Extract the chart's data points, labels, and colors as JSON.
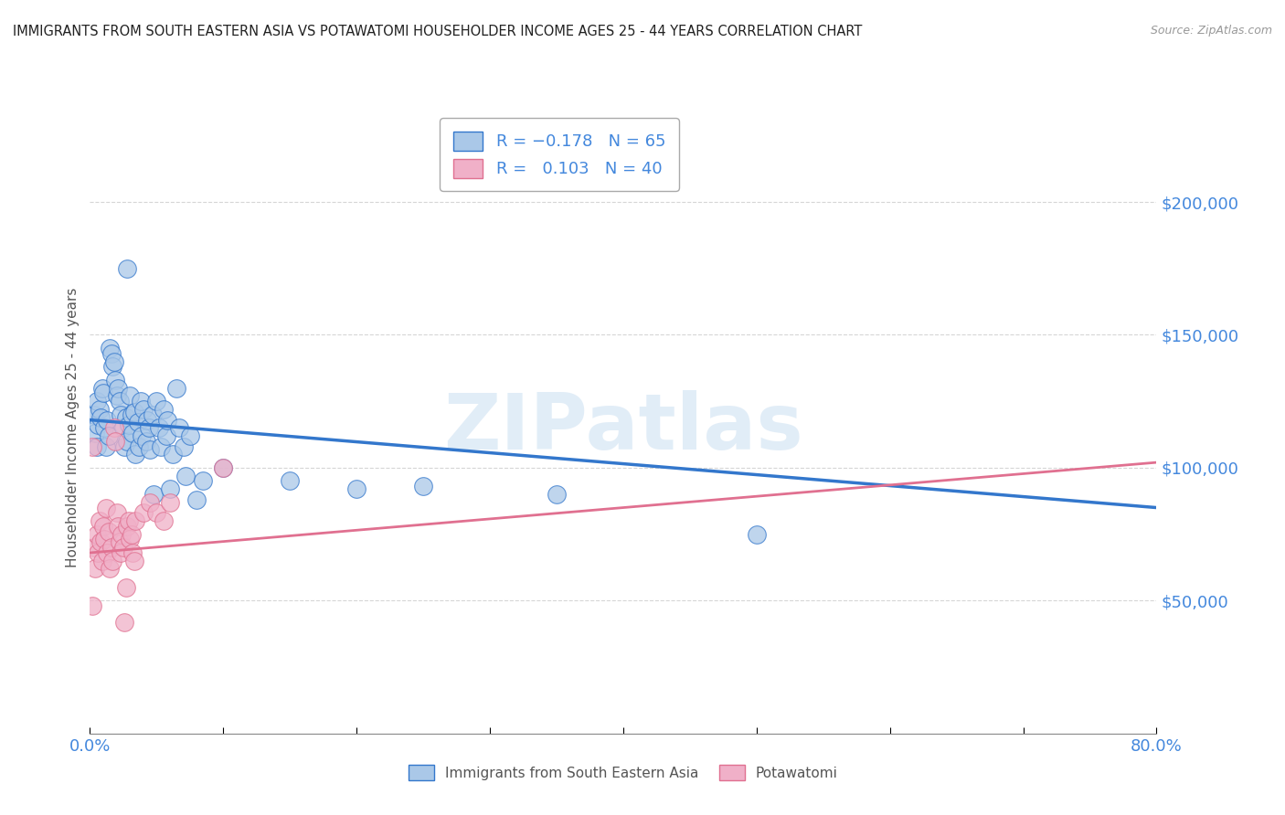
{
  "title": "IMMIGRANTS FROM SOUTH EASTERN ASIA VS POTAWATOMI HOUSEHOLDER INCOME AGES 25 - 44 YEARS CORRELATION CHART",
  "source": "Source: ZipAtlas.com",
  "ylabel": "Householder Income Ages 25 - 44 years",
  "xlim": [
    0.0,
    0.8
  ],
  "ylim": [
    0,
    230000
  ],
  "yticks": [
    50000,
    100000,
    150000,
    200000
  ],
  "ytick_labels": [
    "$50,000",
    "$100,000",
    "$150,000",
    "$200,000"
  ],
  "watermark": "ZIPatlas",
  "legend_label_blue": "Immigrants from South Eastern Asia",
  "legend_label_pink": "Potawatomi",
  "blue_color": "#aac8e8",
  "pink_color": "#f0b0c8",
  "trend_blue_color": "#3377cc",
  "trend_pink_color": "#e07090",
  "axis_label_color": "#4488dd",
  "blue_scatter": [
    [
      0.003,
      120000
    ],
    [
      0.004,
      113000
    ],
    [
      0.005,
      108000
    ],
    [
      0.005,
      125000
    ],
    [
      0.006,
      116000
    ],
    [
      0.007,
      122000
    ],
    [
      0.008,
      119000
    ],
    [
      0.009,
      130000
    ],
    [
      0.01,
      128000
    ],
    [
      0.011,
      115000
    ],
    [
      0.012,
      108000
    ],
    [
      0.013,
      118000
    ],
    [
      0.014,
      112000
    ],
    [
      0.015,
      145000
    ],
    [
      0.016,
      143000
    ],
    [
      0.017,
      138000
    ],
    [
      0.018,
      140000
    ],
    [
      0.019,
      133000
    ],
    [
      0.02,
      127000
    ],
    [
      0.021,
      130000
    ],
    [
      0.022,
      125000
    ],
    [
      0.023,
      120000
    ],
    [
      0.025,
      115000
    ],
    [
      0.026,
      108000
    ],
    [
      0.027,
      119000
    ],
    [
      0.028,
      110000
    ],
    [
      0.029,
      116000
    ],
    [
      0.03,
      127000
    ],
    [
      0.031,
      120000
    ],
    [
      0.032,
      113000
    ],
    [
      0.033,
      121000
    ],
    [
      0.034,
      105000
    ],
    [
      0.036,
      117000
    ],
    [
      0.037,
      108000
    ],
    [
      0.038,
      125000
    ],
    [
      0.039,
      112000
    ],
    [
      0.04,
      122000
    ],
    [
      0.042,
      110000
    ],
    [
      0.043,
      118000
    ],
    [
      0.044,
      115000
    ],
    [
      0.045,
      107000
    ],
    [
      0.047,
      120000
    ],
    [
      0.048,
      90000
    ],
    [
      0.05,
      125000
    ],
    [
      0.052,
      115000
    ],
    [
      0.053,
      108000
    ],
    [
      0.055,
      122000
    ],
    [
      0.057,
      112000
    ],
    [
      0.058,
      118000
    ],
    [
      0.06,
      92000
    ],
    [
      0.062,
      105000
    ],
    [
      0.065,
      130000
    ],
    [
      0.067,
      115000
    ],
    [
      0.07,
      108000
    ],
    [
      0.072,
      97000
    ],
    [
      0.075,
      112000
    ],
    [
      0.08,
      88000
    ],
    [
      0.085,
      95000
    ],
    [
      0.1,
      100000
    ],
    [
      0.15,
      95000
    ],
    [
      0.2,
      92000
    ],
    [
      0.25,
      93000
    ],
    [
      0.35,
      90000
    ],
    [
      0.5,
      75000
    ],
    [
      0.028,
      175000
    ]
  ],
  "pink_scatter": [
    [
      0.002,
      108000
    ],
    [
      0.003,
      70000
    ],
    [
      0.004,
      62000
    ],
    [
      0.005,
      75000
    ],
    [
      0.006,
      68000
    ],
    [
      0.007,
      80000
    ],
    [
      0.008,
      72000
    ],
    [
      0.009,
      65000
    ],
    [
      0.01,
      78000
    ],
    [
      0.011,
      73000
    ],
    [
      0.012,
      85000
    ],
    [
      0.013,
      68000
    ],
    [
      0.014,
      76000
    ],
    [
      0.015,
      62000
    ],
    [
      0.016,
      70000
    ],
    [
      0.017,
      65000
    ],
    [
      0.018,
      115000
    ],
    [
      0.019,
      110000
    ],
    [
      0.02,
      83000
    ],
    [
      0.021,
      78000
    ],
    [
      0.022,
      72000
    ],
    [
      0.023,
      68000
    ],
    [
      0.024,
      75000
    ],
    [
      0.025,
      70000
    ],
    [
      0.026,
      42000
    ],
    [
      0.027,
      55000
    ],
    [
      0.028,
      78000
    ],
    [
      0.029,
      80000
    ],
    [
      0.03,
      73000
    ],
    [
      0.031,
      75000
    ],
    [
      0.032,
      68000
    ],
    [
      0.033,
      65000
    ],
    [
      0.034,
      80000
    ],
    [
      0.04,
      83000
    ],
    [
      0.045,
      87000
    ],
    [
      0.05,
      83000
    ],
    [
      0.055,
      80000
    ],
    [
      0.06,
      87000
    ],
    [
      0.1,
      100000
    ],
    [
      0.002,
      48000
    ]
  ],
  "blue_trend_x": [
    0.0,
    0.8
  ],
  "blue_trend_y": [
    118000,
    85000
  ],
  "pink_trend_x": [
    0.0,
    0.8
  ],
  "pink_trend_y": [
    68000,
    102000
  ]
}
